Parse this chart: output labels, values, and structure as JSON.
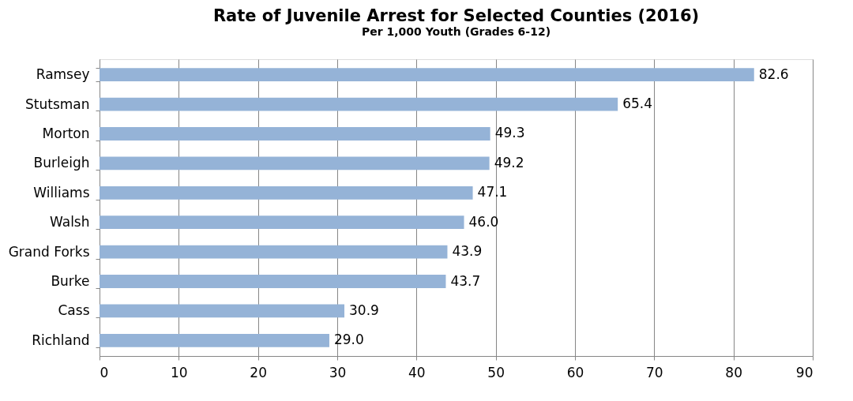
{
  "chart_data": {
    "type": "bar",
    "orientation": "horizontal",
    "title": "Rate of Juvenile Arrest for Selected Counties (2016)",
    "subtitle": "Per 1,000 Youth (Grades 6-12)",
    "categories": [
      "Ramsey",
      "Stutsman",
      "Morton",
      "Burleigh",
      "Williams",
      "Walsh",
      "Grand Forks",
      "Burke",
      "Cass",
      "Richland"
    ],
    "values": [
      82.6,
      65.4,
      49.3,
      49.2,
      47.1,
      46.0,
      43.9,
      43.7,
      30.9,
      29.0
    ],
    "value_labels": [
      "82.6",
      "65.4",
      "49.3",
      "49.2",
      "47.1",
      "46.0",
      "43.9",
      "43.7",
      "30.9",
      "29.0"
    ],
    "color": "#95b3d7",
    "xlim": [
      0,
      90
    ],
    "xticks": [
      0,
      10,
      20,
      30,
      40,
      50,
      60,
      70,
      80,
      90
    ],
    "grid": "x"
  }
}
